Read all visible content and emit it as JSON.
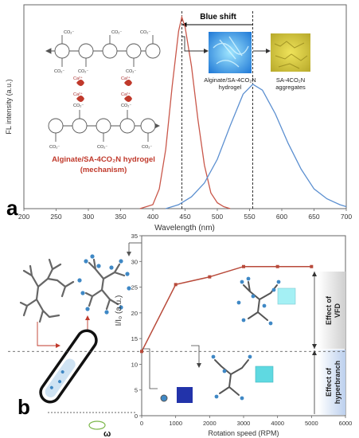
{
  "panel_a": {
    "letter": "a",
    "blue_shift_label": "Blue shift",
    "inset_hydrogel_label_1": "Alginate/SA-4CO₂N",
    "inset_hydrogel_label_2": "hydrogel",
    "inset_aggregates_label_1": "SA-4CO₂N",
    "inset_aggregates_label_2": "aggregates",
    "mechanism_title_1": "Alginate/SA-4CO₂N hydrogel",
    "mechanism_title_2": "(mechanism)",
    "co2_label": "CO₂⁻",
    "ca_label": "Ca²⁺",
    "colors": {
      "hydrogel_curve": "#c9574a",
      "aggregates_curve": "#5b8fd0",
      "mechanism_text": "#c0392b"
    }
  },
  "panel_b": {
    "letter": "b",
    "effect_vfd_1": "Effect of",
    "effect_vfd_2": "VFD",
    "effect_hyper_1": "Effect of",
    "effect_hyper_2": "hyperbranch",
    "omega_label": "ω",
    "colors": {
      "line": "#b84a3a",
      "vfd_box": "#d9d9d9",
      "hyper_box": "#c9d9f0"
    }
  },
  "chart_data": [
    {
      "type": "line",
      "xlabel": "Wavelength (nm)",
      "ylabel": "FL intensity (a.u.)",
      "xlim": [
        200,
        700
      ],
      "xticks": [
        "200",
        "250",
        "300",
        "350",
        "400",
        "450",
        "500",
        "550",
        "600",
        "650",
        "700"
      ],
      "series": [
        {
          "x": [
            380,
            400,
            410,
            420,
            430,
            440,
            445,
            450,
            460,
            470,
            480,
            490,
            500,
            510,
            520
          ],
          "y": [
            0,
            0.02,
            0.1,
            0.3,
            0.62,
            0.9,
            0.97,
            0.92,
            0.72,
            0.45,
            0.22,
            0.08,
            0.03,
            0.01,
            0
          ]
        },
        {
          "x": [
            420,
            440,
            460,
            480,
            500,
            520,
            540,
            555,
            570,
            590,
            610,
            630,
            650,
            670,
            690,
            700
          ],
          "y": [
            0,
            0.02,
            0.06,
            0.13,
            0.25,
            0.42,
            0.58,
            0.63,
            0.6,
            0.48,
            0.33,
            0.2,
            0.1,
            0.05,
            0.02,
            0.01
          ]
        }
      ],
      "annotations": [
        {
          "text": "Blue shift",
          "x": [
            445,
            555
          ]
        }
      ],
      "vlines": [
        445,
        555
      ]
    },
    {
      "type": "line",
      "xlabel": "Rotation speed (RPM)",
      "ylabel": "I/I₀ (a.u.)",
      "xlim": [
        0,
        6000
      ],
      "ylim": [
        0,
        35
      ],
      "xticks": [
        "0",
        "1000",
        "2000",
        "3000",
        "4000",
        "5000",
        "6000"
      ],
      "yticks": [
        "0",
        "5",
        "10",
        "15",
        "20",
        "25",
        "30",
        "35"
      ],
      "x": [
        0,
        1000,
        2000,
        3000,
        4000,
        5000
      ],
      "y": [
        12.5,
        25.5,
        27,
        29,
        29,
        29
      ],
      "hline": 12.5
    }
  ]
}
